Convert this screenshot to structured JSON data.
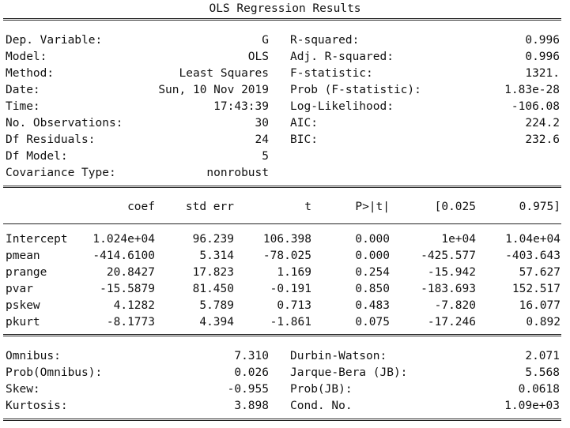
{
  "title": "OLS Regression Results",
  "summary_rows": [
    {
      "left_label": "Dep. Variable:",
      "left_value": "G",
      "right_label": "R-squared:",
      "right_value": "0.996"
    },
    {
      "left_label": "Model:",
      "left_value": "OLS",
      "right_label": "Adj. R-squared:",
      "right_value": "0.996"
    },
    {
      "left_label": "Method:",
      "left_value": "Least Squares",
      "right_label": "F-statistic:",
      "right_value": "1321."
    },
    {
      "left_label": "Date:",
      "left_value": "Sun, 10 Nov 2019",
      "right_label": "Prob (F-statistic):",
      "right_value": "1.83e-28"
    },
    {
      "left_label": "Time:",
      "left_value": "17:43:39",
      "right_label": "Log-Likelihood:",
      "right_value": "-106.08"
    },
    {
      "left_label": "No. Observations:",
      "left_value": "30",
      "right_label": "AIC:",
      "right_value": "224.2"
    },
    {
      "left_label": "Df Residuals:",
      "left_value": "24",
      "right_label": "BIC:",
      "right_value": "232.6"
    },
    {
      "left_label": "Df Model:",
      "left_value": "5",
      "right_label": "",
      "right_value": ""
    },
    {
      "left_label": "Covariance Type:",
      "left_value": "nonrobust",
      "right_label": "",
      "right_value": ""
    }
  ],
  "coef_headers": [
    "coef",
    "std err",
    "t",
    "P>|t|",
    "[0.025",
    "0.975]"
  ],
  "coef_rows": [
    {
      "name": "Intercept",
      "values": [
        "1.024e+04",
        "96.239",
        "106.398",
        "0.000",
        "1e+04",
        "1.04e+04"
      ]
    },
    {
      "name": "pmean",
      "values": [
        "-414.6100",
        "5.314",
        "-78.025",
        "0.000",
        "-425.577",
        "-403.643"
      ]
    },
    {
      "name": "prange",
      "values": [
        "20.8427",
        "17.823",
        "1.169",
        "0.254",
        "-15.942",
        "57.627"
      ]
    },
    {
      "name": "pvar",
      "values": [
        "-15.5879",
        "81.450",
        "-0.191",
        "0.850",
        "-183.693",
        "152.517"
      ]
    },
    {
      "name": "pskew",
      "values": [
        "4.1282",
        "5.789",
        "0.713",
        "0.483",
        "-7.820",
        "16.077"
      ]
    },
    {
      "name": "pkurt",
      "values": [
        "-8.1773",
        "4.394",
        "-1.861",
        "0.075",
        "-17.246",
        "0.892"
      ]
    }
  ],
  "diag_rows": [
    {
      "left_label": "Omnibus:",
      "left_value": "7.310",
      "right_label": "Durbin-Watson:",
      "right_value": "2.071"
    },
    {
      "left_label": "Prob(Omnibus):",
      "left_value": "0.026",
      "right_label": "Jarque-Bera (JB):",
      "right_value": "5.568"
    },
    {
      "left_label": "Skew:",
      "left_value": "-0.955",
      "right_label": "Prob(JB):",
      "right_value": "0.0618"
    },
    {
      "left_label": "Kurtosis:",
      "left_value": "3.898",
      "right_label": "Cond. No.",
      "right_value": "1.09e+03"
    }
  ]
}
